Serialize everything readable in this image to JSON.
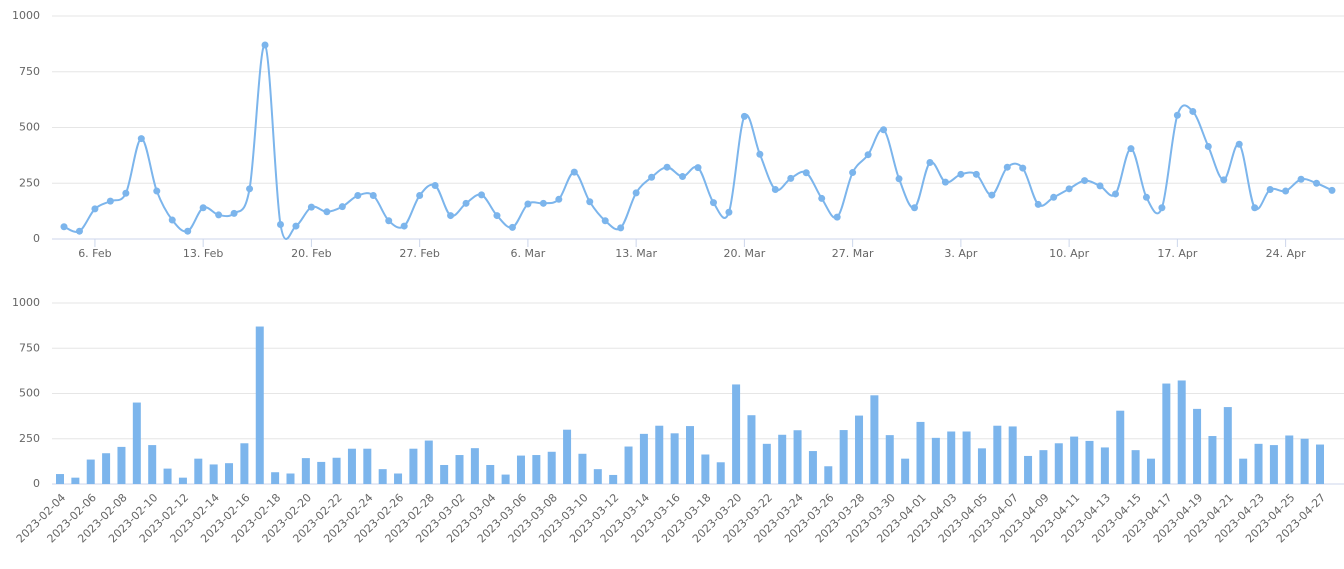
{
  "chart_data": [
    {
      "type": "line",
      "color": "#7cb5ec",
      "grid": true,
      "ylim": [
        0,
        1000
      ],
      "yticks": [
        0,
        250,
        500,
        750,
        1000
      ],
      "categories": [
        null,
        null,
        "6. Feb",
        null,
        null,
        null,
        null,
        null,
        null,
        "13. Feb",
        null,
        null,
        null,
        null,
        null,
        null,
        "20. Feb",
        null,
        null,
        null,
        null,
        null,
        null,
        "27. Feb",
        null,
        null,
        null,
        null,
        null,
        null,
        "6. Mar",
        null,
        null,
        null,
        null,
        null,
        null,
        "13. Mar",
        null,
        null,
        null,
        null,
        null,
        null,
        "20. Mar",
        null,
        null,
        null,
        null,
        null,
        null,
        "27. Mar",
        null,
        null,
        null,
        null,
        null,
        null,
        "3. Apr",
        null,
        null,
        null,
        null,
        null,
        null,
        "10. Apr",
        null,
        null,
        null,
        null,
        null,
        null,
        "17. Apr",
        null,
        null,
        null,
        null,
        null,
        null,
        "24. Apr",
        null,
        null,
        null
      ],
      "values": [
        55,
        35,
        135,
        170,
        205,
        450,
        215,
        85,
        35,
        140,
        108,
        115,
        225,
        870,
        65,
        58,
        143,
        122,
        145,
        195,
        195,
        82,
        58,
        195,
        240,
        105,
        160,
        198,
        105,
        52,
        157,
        160,
        178,
        300,
        167,
        82,
        50,
        207,
        277,
        322,
        280,
        320,
        163,
        120,
        550,
        380,
        222,
        272,
        297,
        182,
        98,
        298,
        378,
        490,
        270,
        140,
        343,
        255,
        290,
        290,
        197,
        322,
        318,
        155,
        187,
        225,
        262,
        238,
        202,
        405,
        187,
        140,
        555,
        572,
        415,
        265,
        425,
        140,
        222,
        215,
        268,
        250,
        218
      ]
    },
    {
      "type": "bar",
      "color": "#7cb5ec",
      "grid": true,
      "ylim": [
        0,
        1000
      ],
      "yticks": [
        0,
        250,
        500,
        750,
        1000
      ],
      "categories": [
        "2023-02-04",
        null,
        "2023-02-06",
        null,
        "2023-02-08",
        null,
        "2023-02-10",
        null,
        "2023-02-12",
        null,
        "2023-02-14",
        null,
        "2023-02-16",
        null,
        "2023-02-18",
        null,
        "2023-02-20",
        null,
        "2023-02-22",
        null,
        "2023-02-24",
        null,
        "2023-02-26",
        null,
        "2023-02-28",
        null,
        "2023-03-02",
        null,
        "2023-03-04",
        null,
        "2023-03-06",
        null,
        "2023-03-08",
        null,
        "2023-03-10",
        null,
        "2023-03-12",
        null,
        "2023-03-14",
        null,
        "2023-03-16",
        null,
        "2023-03-18",
        null,
        "2023-03-20",
        null,
        "2023-03-22",
        null,
        "2023-03-24",
        null,
        "2023-03-26",
        null,
        "2023-03-28",
        null,
        "2023-03-30",
        null,
        "2023-04-01",
        null,
        "2023-04-03",
        null,
        "2023-04-05",
        null,
        "2023-04-07",
        null,
        "2023-04-09",
        null,
        "2023-04-11",
        null,
        "2023-04-13",
        null,
        "2023-04-15",
        null,
        "2023-04-17",
        null,
        "2023-04-19",
        null,
        "2023-04-21",
        null,
        "2023-04-23",
        null,
        "2023-04-25",
        null,
        "2023-04-27"
      ],
      "values": [
        55,
        35,
        135,
        170,
        205,
        450,
        215,
        85,
        35,
        140,
        108,
        115,
        225,
        870,
        65,
        58,
        143,
        122,
        145,
        195,
        195,
        82,
        58,
        195,
        240,
        105,
        160,
        198,
        105,
        52,
        157,
        160,
        178,
        300,
        167,
        82,
        50,
        207,
        277,
        322,
        280,
        320,
        163,
        120,
        550,
        380,
        222,
        272,
        297,
        182,
        98,
        298,
        378,
        490,
        270,
        140,
        343,
        255,
        290,
        290,
        197,
        322,
        318,
        155,
        187,
        225,
        262,
        238,
        202,
        405,
        187,
        140,
        555,
        572,
        415,
        265,
        425,
        140,
        222,
        215,
        268,
        250,
        218
      ]
    }
  ]
}
